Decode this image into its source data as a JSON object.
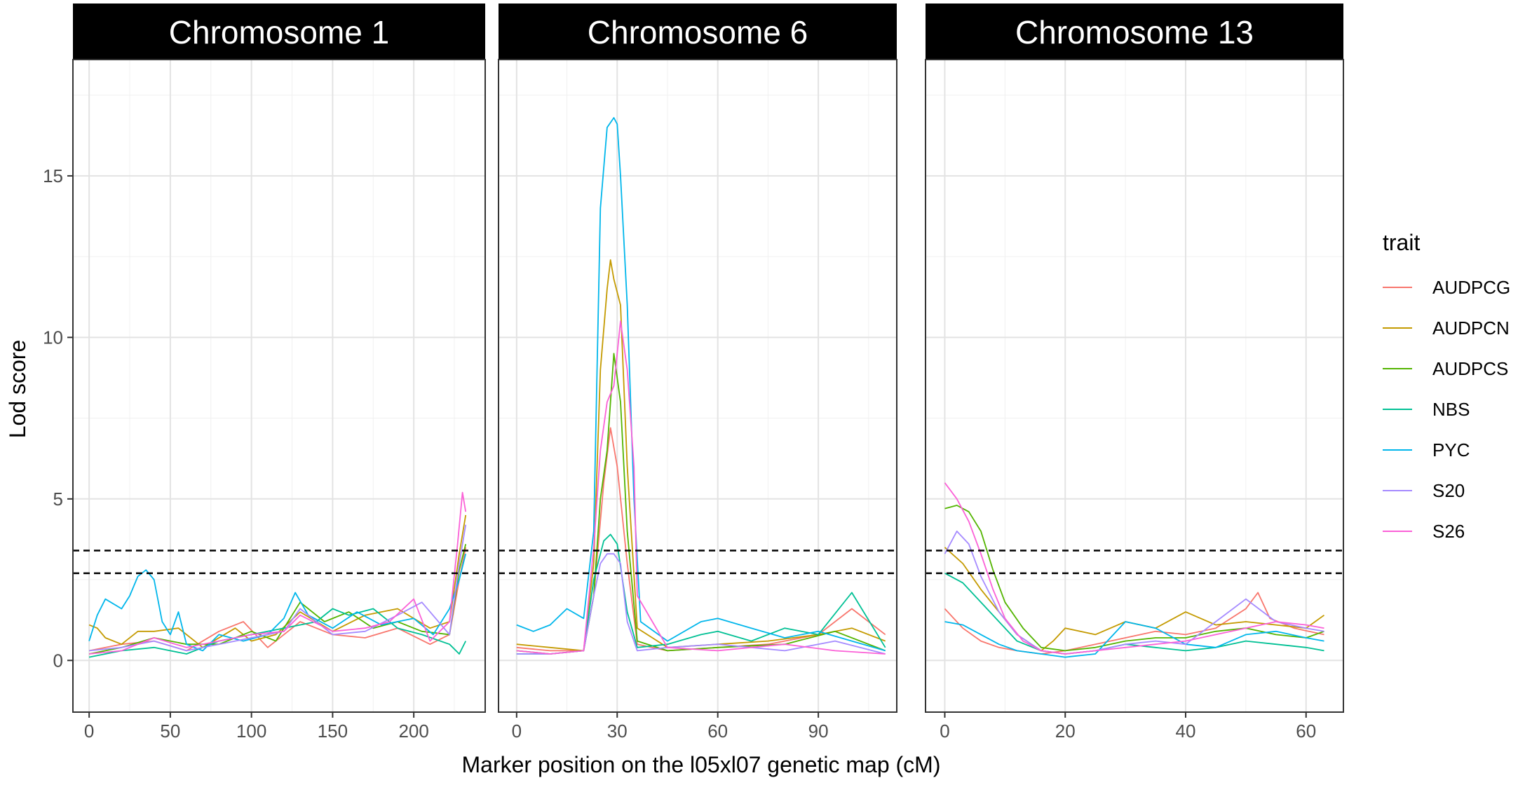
{
  "chart_data": {
    "type": "line",
    "xlabel": "Marker position on the l05xl07 genetic map (cM)",
    "ylabel": "Lod score",
    "ylim": [
      -1.6,
      18.6
    ],
    "yticks": [
      0,
      5,
      10,
      15
    ],
    "grid": true,
    "legend": {
      "title": "trait",
      "placement": "right",
      "entries": [
        "AUDPCG",
        "AUDPCN",
        "AUDPCS",
        "NBS",
        "PYC",
        "S20",
        "S26"
      ]
    },
    "colors": {
      "AUDPCG": "#F8766D",
      "AUDPCN": "#C49A00",
      "AUDPCS": "#53B400",
      "NBS": "#00C094",
      "PYC": "#00B6EB",
      "S20": "#A58AFF",
      "S26": "#FB61D7"
    },
    "thresholds": [
      2.7,
      3.4
    ],
    "facets": [
      {
        "title": "Chromosome 1",
        "xlim": [
          -10,
          244
        ],
        "xticks": [
          0,
          50,
          100,
          150,
          200
        ],
        "series": [
          {
            "name": "AUDPCG",
            "x": [
              0,
              20,
              40,
              60,
              80,
              95,
              110,
              130,
              150,
              170,
              190,
              210,
              222,
              228,
              232
            ],
            "y": [
              0.3,
              0.5,
              0.6,
              0.3,
              0.9,
              1.2,
              0.4,
              1.2,
              0.8,
              0.7,
              1.0,
              0.5,
              0.8,
              2.5,
              3.5
            ]
          },
          {
            "name": "AUDPCN",
            "x": [
              0,
              5,
              10,
              20,
              30,
              40,
              55,
              70,
              90,
              100,
              115,
              130,
              150,
              170,
              190,
              210,
              222,
              228,
              232
            ],
            "y": [
              1.1,
              1.0,
              0.7,
              0.5,
              0.9,
              0.9,
              1.0,
              0.4,
              1.0,
              0.6,
              0.8,
              1.5,
              0.9,
              1.4,
              1.6,
              1.0,
              1.2,
              3.3,
              4.5
            ]
          },
          {
            "name": "AUDPCS",
            "x": [
              0,
              20,
              40,
              60,
              80,
              100,
              115,
              130,
              145,
              160,
              175,
              190,
              205,
              222,
              228,
              232
            ],
            "y": [
              0.2,
              0.4,
              0.7,
              0.5,
              0.5,
              0.9,
              0.6,
              1.8,
              1.2,
              1.5,
              1.0,
              1.2,
              0.9,
              0.8,
              2.8,
              3.6
            ]
          },
          {
            "name": "NBS",
            "x": [
              0,
              20,
              40,
              60,
              80,
              100,
              120,
              140,
              150,
              160,
              175,
              190,
              205,
              222,
              228,
              232
            ],
            "y": [
              0.1,
              0.3,
              0.4,
              0.2,
              0.6,
              0.8,
              1.0,
              1.2,
              1.6,
              1.4,
              1.6,
              1.0,
              0.8,
              0.5,
              0.2,
              0.6
            ]
          },
          {
            "name": "PYC",
            "x": [
              0,
              5,
              10,
              20,
              25,
              30,
              35,
              40,
              45,
              50,
              55,
              60,
              70,
              80,
              95,
              110,
              120,
              127,
              135,
              150,
              165,
              180,
              200,
              212,
              222,
              228,
              232
            ],
            "y": [
              0.6,
              1.4,
              1.9,
              1.6,
              2.0,
              2.6,
              2.8,
              2.5,
              1.2,
              0.8,
              1.5,
              0.5,
              0.3,
              0.8,
              0.6,
              0.8,
              1.3,
              2.1,
              1.4,
              1.0,
              1.5,
              1.1,
              1.3,
              0.8,
              1.6,
              2.5,
              3.3
            ]
          },
          {
            "name": "S20",
            "x": [
              0,
              20,
              40,
              60,
              80,
              100,
              120,
              130,
              150,
              170,
              190,
              205,
              222,
              228,
              232
            ],
            "y": [
              0.3,
              0.4,
              0.6,
              0.3,
              0.5,
              0.7,
              0.9,
              1.6,
              0.8,
              0.9,
              1.4,
              1.8,
              0.8,
              3.0,
              4.2
            ]
          },
          {
            "name": "S26",
            "x": [
              0,
              20,
              40,
              60,
              80,
              100,
              120,
              130,
              150,
              170,
              185,
              200,
              210,
              222,
              227,
              230,
              232
            ],
            "y": [
              0.2,
              0.3,
              0.7,
              0.4,
              0.6,
              0.8,
              0.9,
              1.4,
              0.9,
              1.0,
              1.2,
              1.9,
              0.6,
              1.2,
              3.6,
              5.2,
              4.6
            ]
          }
        ]
      },
      {
        "title": "Chromosome 6",
        "xlim": [
          -5.4,
          113.4
        ],
        "xticks": [
          0,
          30,
          60,
          90
        ],
        "series": [
          {
            "name": "AUDPCG",
            "x": [
              0,
              10,
              20,
              23,
              26,
              28,
              30,
              33,
              36,
              45,
              60,
              75,
              90,
              100,
              110
            ],
            "y": [
              0.4,
              0.3,
              0.3,
              2.0,
              5.5,
              7.2,
              6.0,
              3.0,
              0.5,
              0.3,
              0.4,
              0.5,
              0.8,
              1.6,
              0.8
            ]
          },
          {
            "name": "AUDPCN",
            "x": [
              0,
              10,
              20,
              23,
              25,
              27,
              28,
              29,
              31,
              33,
              36,
              45,
              60,
              75,
              90,
              100,
              110
            ],
            "y": [
              0.5,
              0.4,
              0.3,
              3.0,
              9.0,
              11.5,
              12.4,
              11.8,
              11.0,
              6.0,
              1.0,
              0.4,
              0.5,
              0.6,
              0.8,
              1.0,
              0.6
            ]
          },
          {
            "name": "AUDPCS",
            "x": [
              0,
              10,
              20,
              23,
              25,
              27,
              29,
              31,
              33,
              36,
              45,
              60,
              80,
              95,
              110
            ],
            "y": [
              0.3,
              0.2,
              0.3,
              2.0,
              5.0,
              6.5,
              9.5,
              8.0,
              4.0,
              0.6,
              0.3,
              0.4,
              0.5,
              0.9,
              0.3
            ]
          },
          {
            "name": "NBS",
            "x": [
              0,
              10,
              20,
              23,
              26,
              28,
              30,
              33,
              36,
              45,
              55,
              60,
              70,
              80,
              90,
              100,
              110
            ],
            "y": [
              0.2,
              0.2,
              0.3,
              2.5,
              3.7,
              3.9,
              3.6,
              1.5,
              0.4,
              0.5,
              0.8,
              0.9,
              0.6,
              1.0,
              0.8,
              2.1,
              0.4
            ]
          },
          {
            "name": "PYC",
            "x": [
              0,
              5,
              10,
              15,
              20,
              23,
              25,
              27,
              29,
              30,
              31,
              33,
              34,
              35,
              37,
              45,
              55,
              60,
              70,
              80,
              90,
              100,
              110
            ],
            "y": [
              1.1,
              0.9,
              1.1,
              1.6,
              1.3,
              4.0,
              14.0,
              16.5,
              16.8,
              16.6,
              15.0,
              11.0,
              8.0,
              5.0,
              1.2,
              0.6,
              1.2,
              1.3,
              1.0,
              0.7,
              0.9,
              0.6,
              0.3
            ]
          },
          {
            "name": "S20",
            "x": [
              0,
              10,
              20,
              23,
              25,
              27,
              29,
              31,
              33,
              36,
              45,
              60,
              80,
              95,
              110
            ],
            "y": [
              0.2,
              0.2,
              0.3,
              2.0,
              3.0,
              3.3,
              3.3,
              3.0,
              1.2,
              0.3,
              0.4,
              0.5,
              0.3,
              0.6,
              0.2
            ]
          },
          {
            "name": "S26",
            "x": [
              0,
              10,
              20,
              23,
              25,
              27,
              29,
              31,
              33,
              35,
              36,
              45,
              60,
              80,
              95,
              110
            ],
            "y": [
              0.3,
              0.2,
              0.3,
              3.5,
              6.5,
              8.0,
              8.5,
              10.5,
              9.0,
              6.0,
              2.0,
              0.4,
              0.3,
              0.5,
              0.3,
              0.2
            ]
          }
        ]
      },
      {
        "title": "Chromosome 13",
        "xlim": [
          -3.2,
          66.2
        ],
        "xticks": [
          0,
          20,
          40,
          60
        ],
        "series": [
          {
            "name": "AUDPCG",
            "x": [
              0,
              3,
              6,
              9,
              12,
              16,
              20,
              25,
              30,
              35,
              40,
              45,
              50,
              52,
              54,
              58,
              63
            ],
            "y": [
              1.6,
              1.0,
              0.6,
              0.4,
              0.3,
              0.2,
              0.3,
              0.5,
              0.7,
              0.9,
              0.8,
              1.0,
              1.6,
              2.1,
              1.3,
              1.0,
              0.8
            ]
          },
          {
            "name": "AUDPCN",
            "x": [
              0,
              3,
              6,
              9,
              12,
              16,
              18,
              20,
              25,
              30,
              35,
              40,
              45,
              50,
              55,
              60,
              63
            ],
            "y": [
              3.5,
              3.0,
              2.2,
              1.5,
              0.8,
              0.3,
              0.6,
              1.0,
              0.8,
              1.2,
              1.0,
              1.5,
              1.1,
              1.2,
              1.1,
              1.0,
              1.4
            ]
          },
          {
            "name": "AUDPCS",
            "x": [
              0,
              2,
              4,
              6,
              8,
              10,
              13,
              16,
              20,
              25,
              30,
              35,
              40,
              45,
              50,
              55,
              60,
              63
            ],
            "y": [
              4.7,
              4.8,
              4.6,
              4.0,
              2.8,
              1.8,
              1.0,
              0.4,
              0.3,
              0.4,
              0.6,
              0.7,
              0.7,
              0.9,
              1.0,
              0.8,
              0.7,
              0.9
            ]
          },
          {
            "name": "NBS",
            "x": [
              0,
              3,
              6,
              9,
              12,
              16,
              20,
              25,
              30,
              35,
              40,
              45,
              50,
              55,
              60,
              63
            ],
            "y": [
              2.7,
              2.4,
              1.8,
              1.2,
              0.6,
              0.3,
              0.2,
              0.3,
              0.5,
              0.4,
              0.3,
              0.4,
              0.6,
              0.5,
              0.4,
              0.3
            ]
          },
          {
            "name": "PYC",
            "x": [
              0,
              3,
              6,
              9,
              12,
              16,
              20,
              25,
              30,
              35,
              40,
              45,
              50,
              55,
              60,
              63
            ],
            "y": [
              1.2,
              1.1,
              0.8,
              0.5,
              0.3,
              0.2,
              0.1,
              0.2,
              1.2,
              1.0,
              0.5,
              0.4,
              0.8,
              0.9,
              0.7,
              0.6
            ]
          },
          {
            "name": "S20",
            "x": [
              0,
              2,
              4,
              6,
              9,
              12,
              16,
              20,
              25,
              30,
              35,
              40,
              45,
              50,
              55,
              60,
              63
            ],
            "y": [
              3.3,
              4.0,
              3.6,
              2.6,
              1.5,
              0.8,
              0.3,
              0.2,
              0.3,
              0.5,
              0.6,
              0.5,
              1.2,
              1.9,
              1.2,
              1.0,
              0.9
            ]
          },
          {
            "name": "S26",
            "x": [
              0,
              2,
              4,
              6,
              8,
              10,
              13,
              16,
              20,
              25,
              30,
              35,
              40,
              45,
              50,
              55,
              60,
              63
            ],
            "y": [
              5.5,
              5.0,
              4.3,
              3.3,
              2.2,
              1.3,
              0.6,
              0.3,
              0.2,
              0.3,
              0.4,
              0.5,
              0.6,
              0.8,
              1.0,
              1.2,
              1.1,
              1.0
            ]
          }
        ]
      }
    ]
  }
}
